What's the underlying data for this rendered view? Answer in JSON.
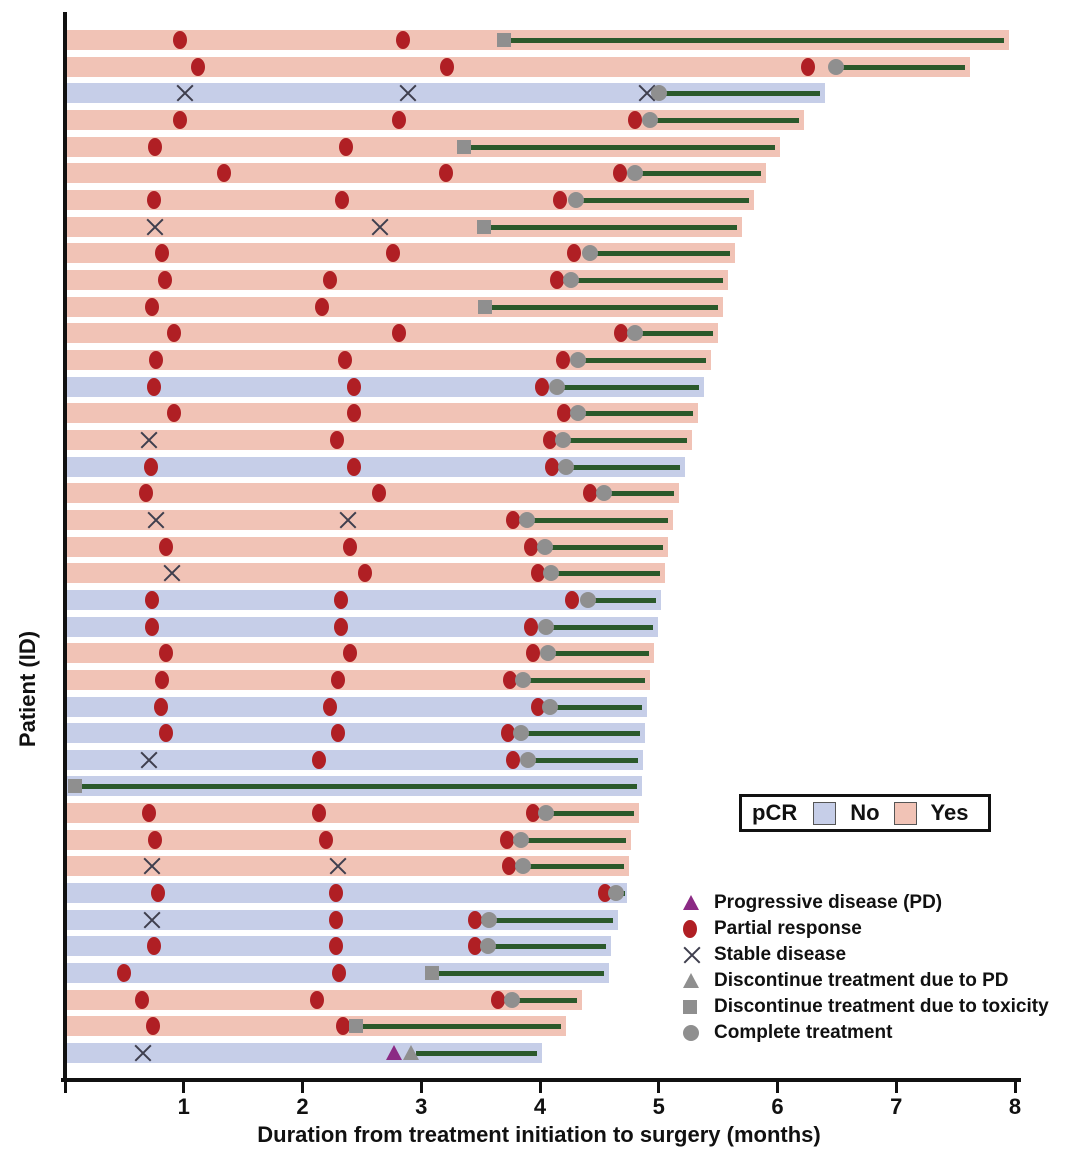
{
  "figure": {
    "x_axis_label": "Duration from treatment initiation to surgery (months)",
    "y_axis_label": "Patient (ID)"
  },
  "pcr_legend": {
    "title": "pCR",
    "no_label": "No",
    "yes_label": "Yes"
  },
  "marker_legend": {
    "items": [
      {
        "icon": "pd-triangle",
        "label": "Progressive disease (PD)"
      },
      {
        "icon": "pr-circle",
        "label": "Partial response"
      },
      {
        "icon": "sd-x",
        "label": "Stable disease"
      },
      {
        "icon": "dpd-triangle",
        "label": "Discontinue treatment due to PD"
      },
      {
        "icon": "tox-square",
        "label": "Discontinue treatment due to toxicity"
      },
      {
        "icon": "comp-circle",
        "label": "Complete treatment"
      }
    ]
  },
  "colors": {
    "pcr_yes_bar": "#f1c3b6",
    "pcr_no_bar": "#c6cee8",
    "post_treatment_line": "#2b592b",
    "partial_response": "#b01f24",
    "progressive_disease": "#8b2a84",
    "gray_marker": "#8f8f8f",
    "stable_disease_x": "#3f3f4e",
    "axis": "#111111"
  },
  "chart_data": {
    "type": "bar",
    "subtype": "swimmer-plot",
    "title": "",
    "xlabel": "Duration from treatment initiation to surgery (months)",
    "ylabel": "Patient (ID)",
    "x_max": 8,
    "x_ticks": [
      1,
      2,
      3,
      4,
      5,
      6,
      7,
      8
    ],
    "grid": false,
    "event_types": {
      "pr": "Partial response",
      "sd": "Stable disease",
      "pd": "Progressive disease (PD)"
    },
    "stop_types": {
      "tox": "Discontinue treatment due to toxicity",
      "comp": "Complete treatment",
      "dpd": "Discontinue treatment due to PD"
    },
    "patients": [
      {
        "pcr": "Yes",
        "end": 7.95,
        "events": [
          [
            "pr",
            0.97
          ],
          [
            "pr",
            2.85
          ]
        ],
        "stop": [
          "tox",
          3.7
        ]
      },
      {
        "pcr": "Yes",
        "end": 7.62,
        "events": [
          [
            "pr",
            1.12
          ],
          [
            "pr",
            3.22
          ],
          [
            "pr",
            6.26
          ]
        ],
        "stop": [
          "comp",
          6.49
        ]
      },
      {
        "pcr": "No",
        "end": 6.4,
        "events": [
          [
            "sd",
            1.01
          ],
          [
            "sd",
            2.89
          ],
          [
            "sd",
            4.9
          ]
        ],
        "stop": [
          "comp",
          5.0
        ]
      },
      {
        "pcr": "Yes",
        "end": 6.22,
        "events": [
          [
            "pr",
            0.97
          ],
          [
            "pr",
            2.81
          ],
          [
            "pr",
            4.8
          ]
        ],
        "stop": [
          "comp",
          4.93
        ]
      },
      {
        "pcr": "Yes",
        "end": 6.02,
        "events": [
          [
            "pr",
            0.76
          ],
          [
            "pr",
            2.37
          ]
        ],
        "stop": [
          "tox",
          3.36
        ]
      },
      {
        "pcr": "Yes",
        "end": 5.9,
        "events": [
          [
            "pr",
            1.34
          ],
          [
            "pr",
            3.21
          ],
          [
            "pr",
            4.67
          ]
        ],
        "stop": [
          "comp",
          4.8
        ]
      },
      {
        "pcr": "Yes",
        "end": 5.8,
        "events": [
          [
            "pr",
            0.75
          ],
          [
            "pr",
            2.33
          ],
          [
            "pr",
            4.17
          ]
        ],
        "stop": [
          "comp",
          4.3
        ]
      },
      {
        "pcr": "Yes",
        "end": 5.7,
        "events": [
          [
            "sd",
            0.76
          ],
          [
            "sd",
            2.65
          ]
        ],
        "stop": [
          "tox",
          3.53
        ]
      },
      {
        "pcr": "Yes",
        "end": 5.64,
        "events": [
          [
            "pr",
            0.82
          ],
          [
            "pr",
            2.76
          ],
          [
            "pr",
            4.29
          ]
        ],
        "stop": [
          "comp",
          4.42
        ]
      },
      {
        "pcr": "Yes",
        "end": 5.58,
        "events": [
          [
            "pr",
            0.84
          ],
          [
            "pr",
            2.23
          ],
          [
            "pr",
            4.14
          ]
        ],
        "stop": [
          "comp",
          4.26
        ]
      },
      {
        "pcr": "Yes",
        "end": 5.54,
        "events": [
          [
            "pr",
            0.73
          ],
          [
            "pr",
            2.16
          ]
        ],
        "stop": [
          "tox",
          3.54
        ]
      },
      {
        "pcr": "Yes",
        "end": 5.5,
        "events": [
          [
            "pr",
            0.92
          ],
          [
            "pr",
            2.81
          ],
          [
            "pr",
            4.68
          ]
        ],
        "stop": [
          "comp",
          4.8
        ]
      },
      {
        "pcr": "Yes",
        "end": 5.44,
        "events": [
          [
            "pr",
            0.77
          ],
          [
            "pr",
            2.36
          ],
          [
            "pr",
            4.19
          ]
        ],
        "stop": [
          "comp",
          4.32
        ]
      },
      {
        "pcr": "No",
        "end": 5.38,
        "events": [
          [
            "pr",
            0.75
          ],
          [
            "pr",
            2.43
          ],
          [
            "pr",
            4.02
          ]
        ],
        "stop": [
          "comp",
          4.14
        ]
      },
      {
        "pcr": "Yes",
        "end": 5.33,
        "events": [
          [
            "pr",
            0.92
          ],
          [
            "pr",
            2.43
          ],
          [
            "pr",
            4.2
          ]
        ],
        "stop": [
          "comp",
          4.32
        ]
      },
      {
        "pcr": "Yes",
        "end": 5.28,
        "events": [
          [
            "sd",
            0.71
          ],
          [
            "pr",
            2.29
          ],
          [
            "pr",
            4.08
          ]
        ],
        "stop": [
          "comp",
          4.19
        ]
      },
      {
        "pcr": "No",
        "end": 5.22,
        "events": [
          [
            "pr",
            0.72
          ],
          [
            "pr",
            2.43
          ],
          [
            "pr",
            4.1
          ]
        ],
        "stop": [
          "comp",
          4.22
        ]
      },
      {
        "pcr": "Yes",
        "end": 5.17,
        "events": [
          [
            "pr",
            0.68
          ],
          [
            "pr",
            2.64
          ],
          [
            "pr",
            4.42
          ]
        ],
        "stop": [
          "comp",
          4.54
        ]
      },
      {
        "pcr": "Yes",
        "end": 5.12,
        "events": [
          [
            "sd",
            0.77
          ],
          [
            "sd",
            2.38
          ],
          [
            "pr",
            3.77
          ]
        ],
        "stop": [
          "comp",
          3.89
        ]
      },
      {
        "pcr": "Yes",
        "end": 5.08,
        "events": [
          [
            "pr",
            0.85
          ],
          [
            "pr",
            2.4
          ],
          [
            "pr",
            3.92
          ]
        ],
        "stop": [
          "comp",
          4.04
        ]
      },
      {
        "pcr": "Yes",
        "end": 5.05,
        "events": [
          [
            "sd",
            0.9
          ],
          [
            "pr",
            2.53
          ],
          [
            "pr",
            3.98
          ]
        ],
        "stop": [
          "comp",
          4.09
        ]
      },
      {
        "pcr": "No",
        "end": 5.02,
        "events": [
          [
            "pr",
            0.73
          ],
          [
            "pr",
            2.32
          ],
          [
            "pr",
            4.27
          ]
        ],
        "stop": [
          "comp",
          4.4
        ]
      },
      {
        "pcr": "No",
        "end": 4.99,
        "events": [
          [
            "pr",
            0.73
          ],
          [
            "pr",
            2.32
          ],
          [
            "pr",
            3.92
          ]
        ],
        "stop": [
          "comp",
          4.05
        ]
      },
      {
        "pcr": "Yes",
        "end": 4.96,
        "events": [
          [
            "pr",
            0.85
          ],
          [
            "pr",
            2.4
          ],
          [
            "pr",
            3.94
          ]
        ],
        "stop": [
          "comp",
          4.07
        ]
      },
      {
        "pcr": "Yes",
        "end": 4.93,
        "events": [
          [
            "pr",
            0.82
          ],
          [
            "pr",
            2.3
          ],
          [
            "pr",
            3.75
          ]
        ],
        "stop": [
          "comp",
          3.86
        ]
      },
      {
        "pcr": "No",
        "end": 4.9,
        "events": [
          [
            "pr",
            0.81
          ],
          [
            "pr",
            2.23
          ],
          [
            "pr",
            3.98
          ]
        ],
        "stop": [
          "comp",
          4.08
        ]
      },
      {
        "pcr": "No",
        "end": 4.88,
        "events": [
          [
            "pr",
            0.85
          ],
          [
            "pr",
            2.3
          ],
          [
            "pr",
            3.73
          ]
        ],
        "stop": [
          "comp",
          3.84
        ]
      },
      {
        "pcr": "No",
        "end": 4.87,
        "events": [
          [
            "sd",
            0.71
          ],
          [
            "pr",
            2.14
          ],
          [
            "pr",
            3.77
          ]
        ],
        "stop": [
          "comp",
          3.9
        ]
      },
      {
        "pcr": "No",
        "end": 4.86,
        "events": [],
        "stop": [
          "tox",
          0.08
        ]
      },
      {
        "pcr": "Yes",
        "end": 4.83,
        "events": [
          [
            "pr",
            0.71
          ],
          [
            "pr",
            2.14
          ],
          [
            "pr",
            3.94
          ]
        ],
        "stop": [
          "comp",
          4.05
        ]
      },
      {
        "pcr": "Yes",
        "end": 4.77,
        "events": [
          [
            "pr",
            0.76
          ],
          [
            "pr",
            2.2
          ],
          [
            "pr",
            3.72
          ]
        ],
        "stop": [
          "comp",
          3.84
        ]
      },
      {
        "pcr": "Yes",
        "end": 4.75,
        "events": [
          [
            "sd",
            0.73
          ],
          [
            "sd",
            2.3
          ],
          [
            "pr",
            3.74
          ]
        ],
        "stop": [
          "comp",
          3.86
        ]
      },
      {
        "pcr": "No",
        "end": 4.73,
        "events": [
          [
            "pr",
            0.78
          ],
          [
            "pr",
            2.28
          ],
          [
            "pr",
            4.55
          ]
        ],
        "stop": [
          "comp",
          4.64
        ]
      },
      {
        "pcr": "No",
        "end": 4.66,
        "events": [
          [
            "sd",
            0.73
          ],
          [
            "pr",
            2.28
          ],
          [
            "pr",
            3.45
          ]
        ],
        "stop": [
          "comp",
          3.57
        ]
      },
      {
        "pcr": "No",
        "end": 4.6,
        "events": [
          [
            "pr",
            0.75
          ],
          [
            "pr",
            2.28
          ],
          [
            "pr",
            3.45
          ]
        ],
        "stop": [
          "comp",
          3.56
        ]
      },
      {
        "pcr": "No",
        "end": 4.58,
        "events": [
          [
            "pr",
            0.5
          ],
          [
            "pr",
            2.31
          ]
        ],
        "stop": [
          "tox",
          3.09
        ]
      },
      {
        "pcr": "Yes",
        "end": 4.35,
        "events": [
          [
            "pr",
            0.65
          ],
          [
            "pr",
            2.12
          ],
          [
            "pr",
            3.65
          ]
        ],
        "stop": [
          "comp",
          3.76
        ]
      },
      {
        "pcr": "Yes",
        "end": 4.22,
        "events": [
          [
            "pr",
            0.74
          ],
          [
            "pr",
            2.34
          ]
        ],
        "stop": [
          "tox",
          2.45
        ]
      },
      {
        "pcr": "No",
        "end": 4.02,
        "events": [
          [
            "sd",
            0.66
          ],
          [
            "pd",
            2.77
          ]
        ],
        "stop": [
          "dpd",
          2.91
        ]
      }
    ]
  }
}
